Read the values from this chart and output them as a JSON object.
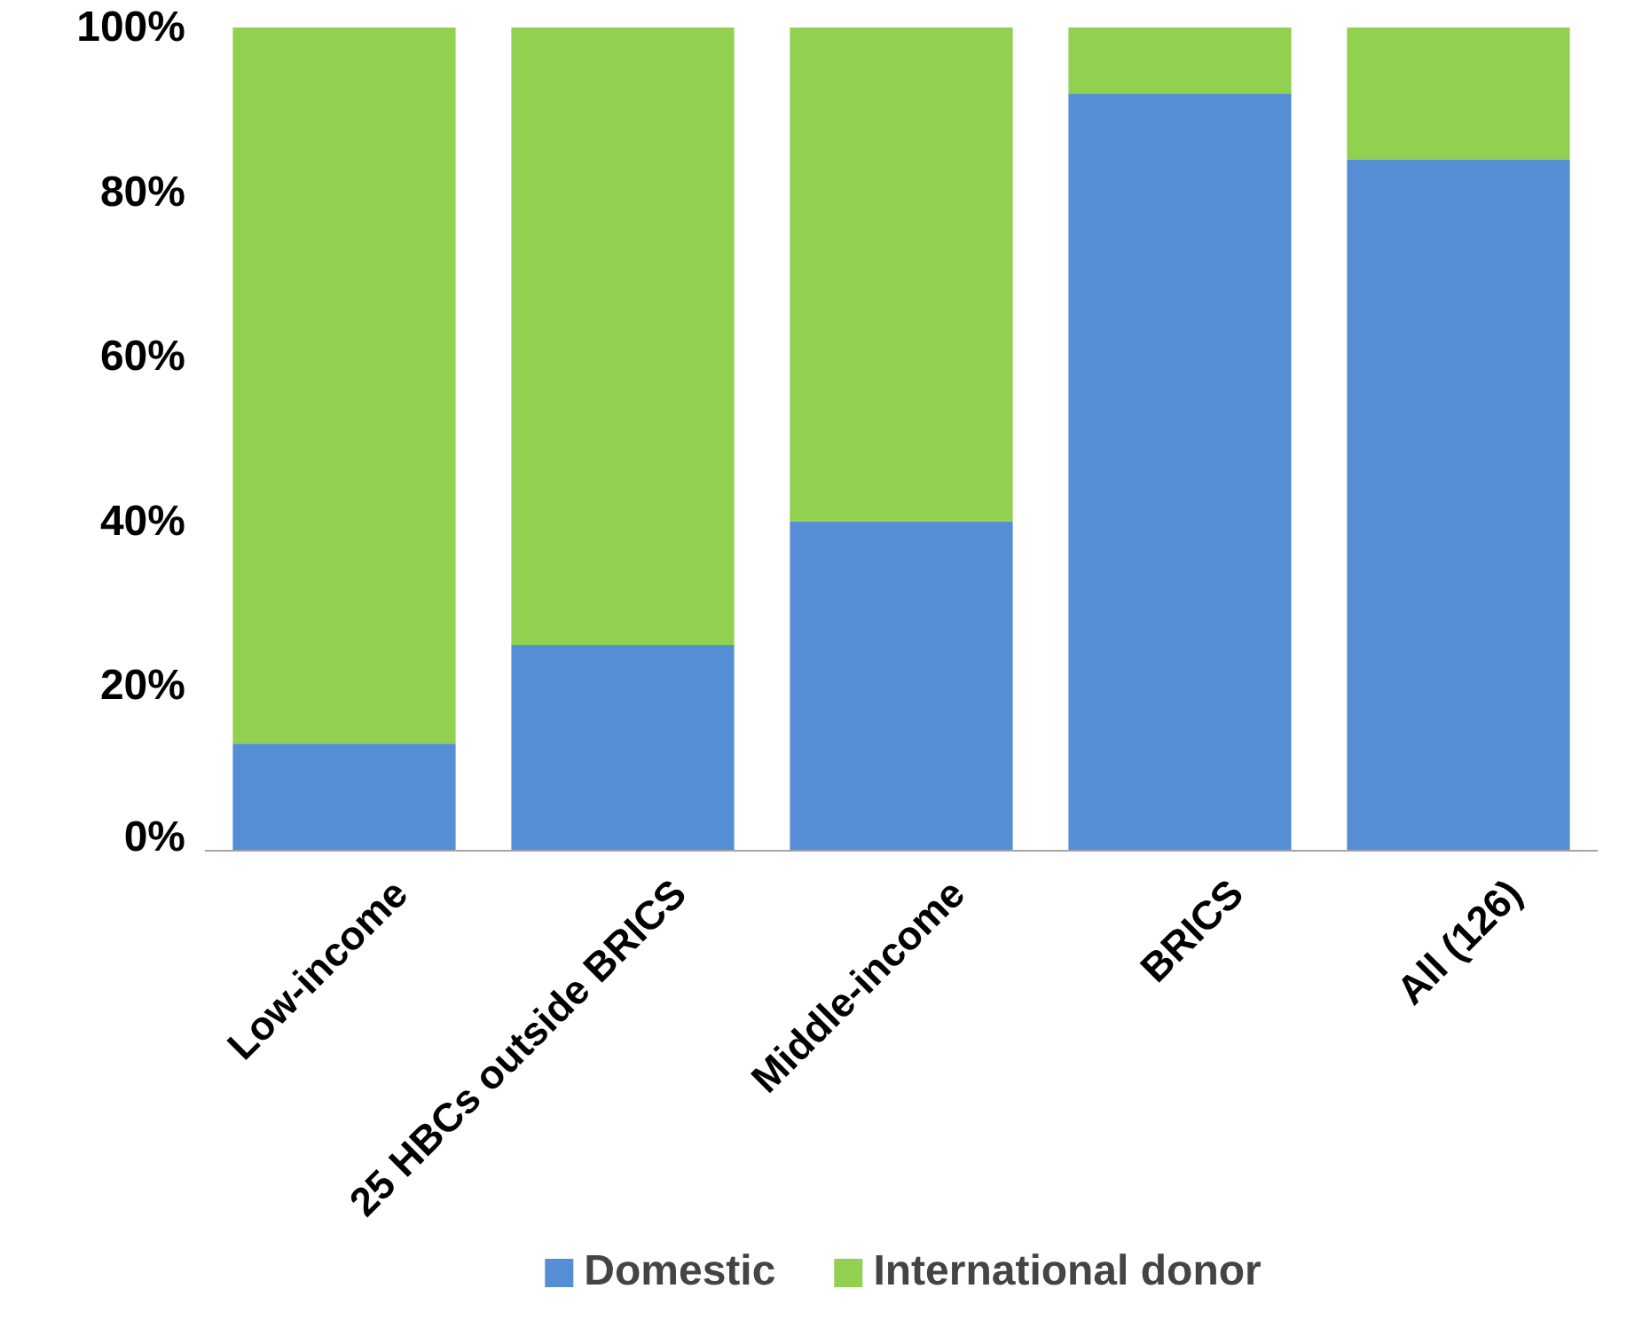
{
  "chart_data": {
    "type": "bar",
    "stacked": true,
    "categories": [
      "Low-income",
      "25 HBCs outside BRICS",
      "Middle-income",
      "BRICS",
      "All (126)"
    ],
    "series": [
      {
        "name": "Domestic",
        "color": "#558ed5",
        "values": [
          13,
          25,
          40,
          92,
          84
        ]
      },
      {
        "name": "International donor",
        "color": "#92d050",
        "values": [
          87,
          75,
          60,
          8,
          16
        ]
      }
    ],
    "ylim": [
      0,
      100
    ],
    "yticks": [
      {
        "value": 0,
        "label": "0%"
      },
      {
        "value": 20,
        "label": "20%"
      },
      {
        "value": 40,
        "label": "40%"
      },
      {
        "value": 60,
        "label": "60%"
      },
      {
        "value": 80,
        "label": "80%"
      },
      {
        "value": 100,
        "label": "100%"
      }
    ],
    "grid": false,
    "legend": "bottom"
  }
}
